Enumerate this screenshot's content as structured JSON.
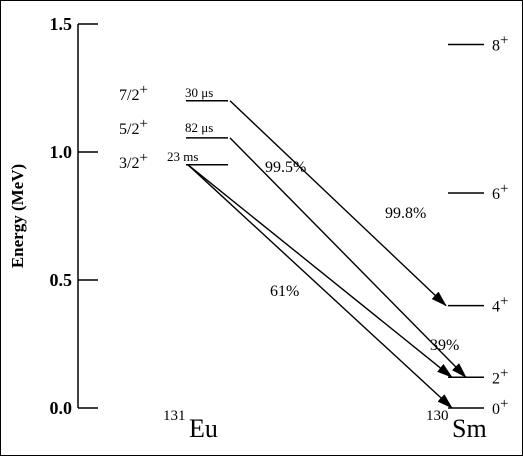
{
  "axis": {
    "title": "Energy (MeV)",
    "ticks": [
      {
        "value": 0.0,
        "label": "0.0"
      },
      {
        "value": 0.5,
        "label": "0.5"
      },
      {
        "value": 1.0,
        "label": "1.0"
      },
      {
        "value": 1.5,
        "label": "1.5"
      }
    ]
  },
  "parent": {
    "mass": "131",
    "symbol": "Eu",
    "levels": [
      {
        "energy": 0.95,
        "spin": "3/2",
        "parity": "+",
        "halflife": "23 ms"
      },
      {
        "energy": 1.055,
        "spin": "5/2",
        "parity": "+",
        "halflife": "82 μs"
      },
      {
        "energy": 1.2,
        "spin": "7/2",
        "parity": "+",
        "halflife": "30 μs"
      }
    ]
  },
  "daughter": {
    "mass": "130",
    "symbol": "Sm",
    "levels": [
      {
        "energy": 0.0,
        "spin": "0",
        "parity": "+"
      },
      {
        "energy": 0.12,
        "spin": "2",
        "parity": "+"
      },
      {
        "energy": 0.4,
        "spin": "4",
        "parity": "+"
      },
      {
        "energy": 0.84,
        "spin": "6",
        "parity": "+"
      },
      {
        "energy": 1.42,
        "spin": "8",
        "parity": "+"
      }
    ]
  },
  "transitions": [
    {
      "from_energy": 1.2,
      "to_energy": 0.4,
      "branch": "99.8%"
    },
    {
      "from_energy": 1.055,
      "to_energy": 0.12,
      "branch": "99.5%"
    },
    {
      "from_energy": 0.95,
      "to_energy": 0.12,
      "branch": "39%"
    },
    {
      "from_energy": 0.95,
      "to_energy": 0.0,
      "branch": "61%"
    }
  ]
}
